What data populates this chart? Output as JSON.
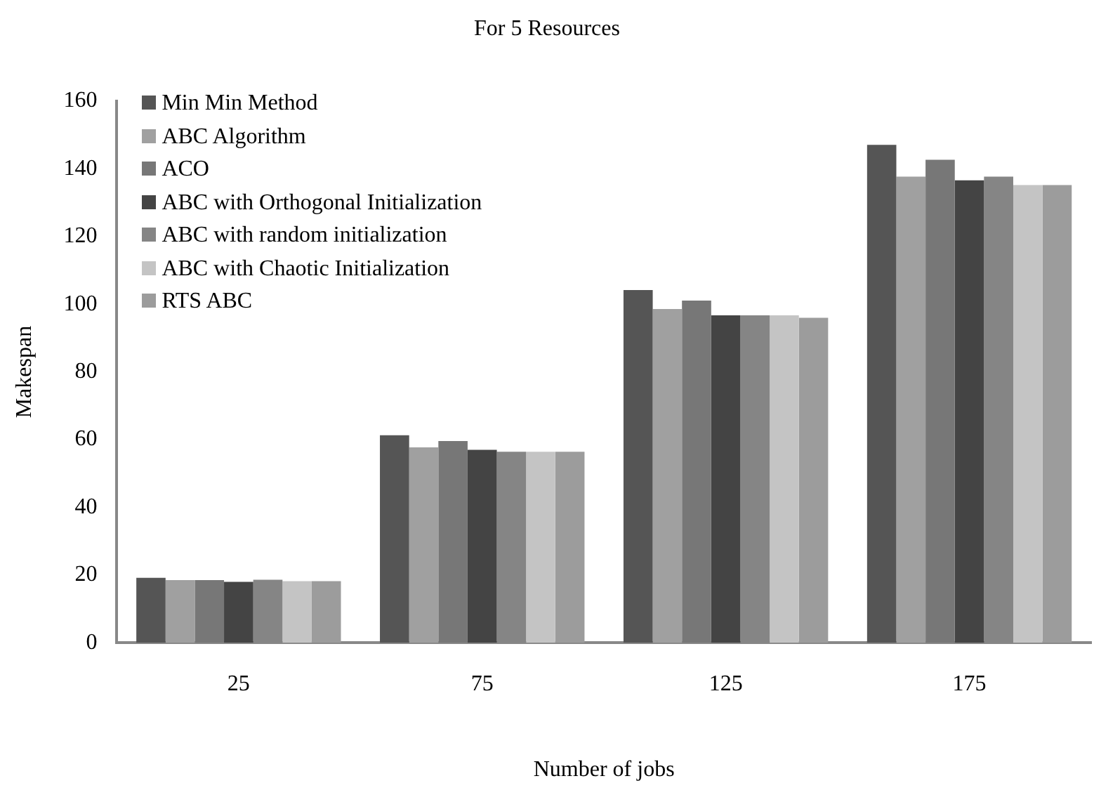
{
  "chart_data": {
    "type": "bar",
    "title": "For 5 Resources",
    "xlabel": "Number of jobs",
    "ylabel": "Makespan",
    "categories": [
      "25",
      "75",
      "125",
      "175"
    ],
    "series": [
      {
        "name": "Min Min Method",
        "color": "#555555",
        "values": [
          19.2,
          61.3,
          104.2,
          147.1
        ]
      },
      {
        "name": "ABC Algorithm",
        "color": "#a0a0a0",
        "values": [
          18.5,
          57.7,
          98.6,
          137.7
        ]
      },
      {
        "name": "ACO",
        "color": "#777777",
        "values": [
          18.5,
          59.6,
          101.1,
          142.7
        ]
      },
      {
        "name": "ABC with Orthogonal Initialization",
        "color": "#444444",
        "values": [
          18.0,
          57.0,
          96.7,
          136.6
        ]
      },
      {
        "name": "ABC with random initialization",
        "color": "#858585",
        "values": [
          18.6,
          56.4,
          96.7,
          137.7
        ]
      },
      {
        "name": "ABC with Chaotic Initialization",
        "color": "#c4c4c4",
        "values": [
          18.2,
          56.4,
          96.7,
          135.2
        ]
      },
      {
        "name": "RTS ABC",
        "color": "#9c9c9c",
        "values": [
          18.2,
          56.4,
          96.0,
          135.2
        ]
      }
    ],
    "ylim": [
      0,
      160
    ],
    "yticks": [
      0,
      20,
      40,
      60,
      80,
      100,
      120,
      140,
      160
    ],
    "grid": false,
    "legend": "top left"
  }
}
